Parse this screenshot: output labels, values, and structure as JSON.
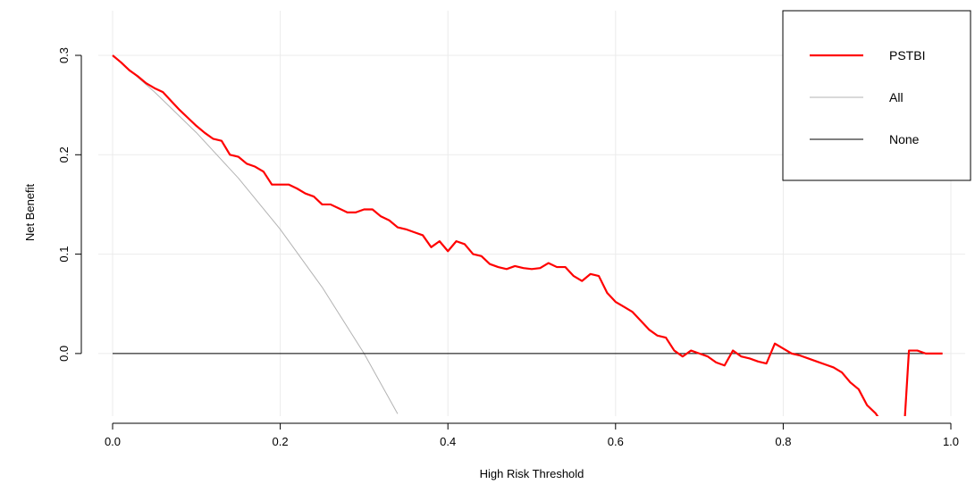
{
  "chart_data": {
    "type": "line",
    "xlabel": "High Risk Threshold",
    "ylabel": "Net Benefit",
    "xlim": [
      0.0,
      1.0
    ],
    "ylim": [
      -0.063,
      0.3
    ],
    "xticks": [
      "0.0",
      "0.2",
      "0.4",
      "0.6",
      "0.8",
      "1.0"
    ],
    "yticks": [
      "0.0",
      "0.1",
      "0.2",
      "0.3"
    ],
    "grid": true,
    "legend_position": "top-right",
    "series": [
      {
        "name": "PSTBI",
        "color": "#ff0000",
        "x": [
          0.0,
          0.01,
          0.02,
          0.03,
          0.04,
          0.05,
          0.06,
          0.07,
          0.08,
          0.09,
          0.1,
          0.11,
          0.12,
          0.13,
          0.14,
          0.15,
          0.16,
          0.17,
          0.18,
          0.19,
          0.2,
          0.21,
          0.22,
          0.23,
          0.24,
          0.25,
          0.26,
          0.27,
          0.28,
          0.29,
          0.3,
          0.31,
          0.32,
          0.33,
          0.34,
          0.35,
          0.36,
          0.37,
          0.38,
          0.39,
          0.4,
          0.41,
          0.42,
          0.43,
          0.44,
          0.45,
          0.46,
          0.47,
          0.48,
          0.49,
          0.5,
          0.51,
          0.52,
          0.53,
          0.54,
          0.55,
          0.56,
          0.57,
          0.58,
          0.59,
          0.6,
          0.61,
          0.62,
          0.63,
          0.64,
          0.65,
          0.66,
          0.67,
          0.68,
          0.69,
          0.7,
          0.71,
          0.72,
          0.73,
          0.74,
          0.75,
          0.76,
          0.77,
          0.78,
          0.79,
          0.8,
          0.81,
          0.82,
          0.83,
          0.84,
          0.85,
          0.86,
          0.87,
          0.88,
          0.89,
          0.9,
          0.91,
          0.915,
          0.945,
          0.95,
          0.96,
          0.97,
          0.98,
          0.99
        ],
        "y": [
          0.3,
          0.293,
          0.285,
          0.279,
          0.272,
          0.267,
          0.263,
          0.254,
          0.245,
          0.237,
          0.229,
          0.222,
          0.216,
          0.214,
          0.2,
          0.198,
          0.191,
          0.188,
          0.183,
          0.17,
          0.17,
          0.17,
          0.166,
          0.161,
          0.158,
          0.15,
          0.15,
          0.146,
          0.142,
          0.142,
          0.145,
          0.145,
          0.138,
          0.134,
          0.127,
          0.125,
          0.122,
          0.119,
          0.107,
          0.113,
          0.103,
          0.113,
          0.11,
          0.1,
          0.098,
          0.09,
          0.087,
          0.085,
          0.088,
          0.086,
          0.085,
          0.086,
          0.091,
          0.087,
          0.087,
          0.078,
          0.073,
          0.08,
          0.078,
          0.061,
          0.052,
          0.047,
          0.042,
          0.033,
          0.024,
          0.018,
          0.016,
          0.003,
          -0.003,
          0.003,
          0.0,
          -0.003,
          -0.009,
          -0.012,
          0.003,
          -0.003,
          -0.005,
          -0.008,
          -0.01,
          0.01,
          0.005,
          0.0,
          -0.002,
          -0.005,
          -0.008,
          -0.011,
          -0.014,
          -0.019,
          -0.029,
          -0.036,
          -0.052,
          -0.06,
          -0.066,
          -0.066,
          0.003,
          0.003,
          0.0,
          0.0,
          0.0
        ]
      },
      {
        "name": "All",
        "color": "#b3b3b3",
        "x": [
          0.0,
          0.05,
          0.1,
          0.15,
          0.2,
          0.25,
          0.3,
          0.34
        ],
        "y": [
          0.3,
          0.2632,
          0.2222,
          0.1765,
          0.125,
          0.0667,
          0.0,
          -0.0606
        ]
      },
      {
        "name": "None",
        "color": "#000000",
        "x": [
          0.0,
          0.99
        ],
        "y": [
          0.0,
          0.0
        ]
      }
    ]
  }
}
